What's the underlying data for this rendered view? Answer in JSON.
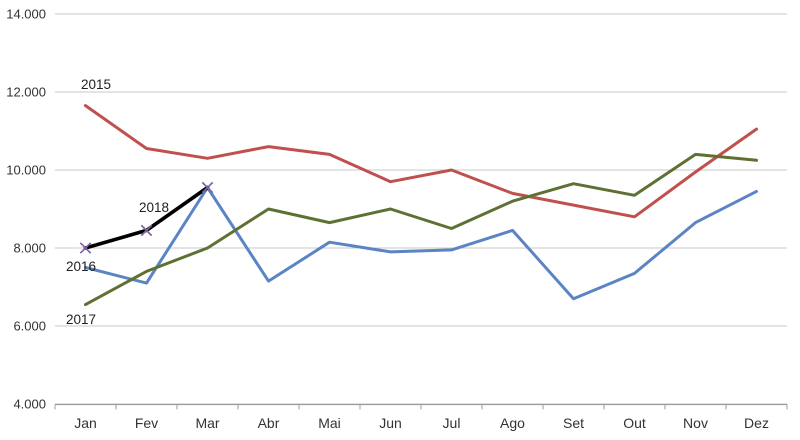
{
  "chart_data": {
    "type": "line",
    "title": "",
    "xlabel": "",
    "ylabel": "",
    "categories": [
      "Jan",
      "Fev",
      "Mar",
      "Abr",
      "Mai",
      "Jun",
      "Jul",
      "Ago",
      "Set",
      "Out",
      "Nov",
      "Dez"
    ],
    "series": [
      {
        "name": "2015",
        "color": "#C0504D",
        "line_width": 3,
        "marker": "none",
        "values": [
          11650,
          10550,
          10300,
          10600,
          10400,
          9700,
          10000,
          9400,
          9100,
          8800,
          9950,
          11050
        ]
      },
      {
        "name": "2016",
        "color": "#5B84C4",
        "line_width": 3,
        "marker": "none",
        "values": [
          7500,
          7100,
          9550,
          7150,
          8150,
          7900,
          7950,
          8450,
          6700,
          7350,
          8650,
          9450
        ]
      },
      {
        "name": "2017",
        "color": "#5E7132",
        "line_width": 3,
        "marker": "none",
        "values": [
          6550,
          7400,
          8000,
          9000,
          8650,
          9000,
          8500,
          9200,
          9650,
          9350,
          10400,
          10250
        ]
      },
      {
        "name": "2018",
        "color": "#000000",
        "line_width": 3.6,
        "marker": "x",
        "marker_color": "#8064A2",
        "values": [
          8000,
          8450,
          9550
        ]
      }
    ],
    "ylim": [
      4000,
      14000
    ],
    "ytick_step": 2000,
    "ytick_labels": [
      "4.000",
      "6.000",
      "8.000",
      "10.000",
      "12.000",
      "14.000"
    ],
    "grid": true,
    "legend_position": "inline-labels"
  },
  "colors": {
    "background": "#FFFFFF",
    "gridline": "#C9C9C9",
    "axis_line": "#9C9C9C",
    "tick_text": "#333333",
    "label_text": "#1F1F1F"
  }
}
